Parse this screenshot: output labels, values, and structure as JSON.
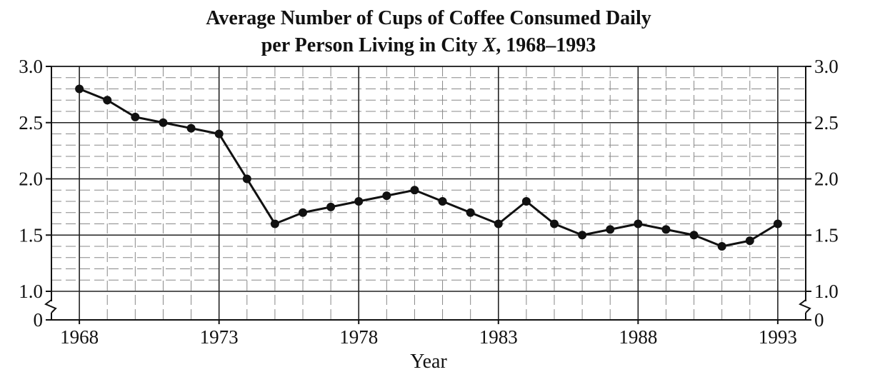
{
  "chart_data": {
    "type": "line",
    "title_lines": [
      "Average Number of Cups of Coffee Consumed Daily",
      "per Person Living in City X, 1968–1993"
    ],
    "xlabel": "Year",
    "ylabel": "",
    "x": [
      1968,
      1969,
      1970,
      1971,
      1972,
      1973,
      1974,
      1975,
      1976,
      1977,
      1978,
      1979,
      1980,
      1981,
      1982,
      1983,
      1984,
      1985,
      1986,
      1987,
      1988,
      1989,
      1990,
      1991,
      1992,
      1993
    ],
    "values": [
      2.8,
      2.7,
      2.55,
      2.5,
      2.45,
      2.4,
      2.0,
      1.6,
      1.7,
      1.75,
      1.8,
      1.85,
      1.9,
      1.8,
      1.7,
      1.6,
      1.8,
      1.6,
      1.5,
      1.55,
      1.6,
      1.55,
      1.5,
      1.4,
      1.45,
      1.6
    ],
    "xlim": [
      1967,
      1994
    ],
    "ylim": [
      1.0,
      3.0
    ],
    "axis_break": true,
    "x_tick_labels": [
      "1968",
      "1973",
      "1978",
      "1983",
      "1988",
      "1993"
    ],
    "y_tick_labels": [
      "3.0",
      "2.5",
      "2.0",
      "1.5",
      "1.0",
      "0"
    ],
    "grid": true,
    "line_color": "#111111"
  }
}
